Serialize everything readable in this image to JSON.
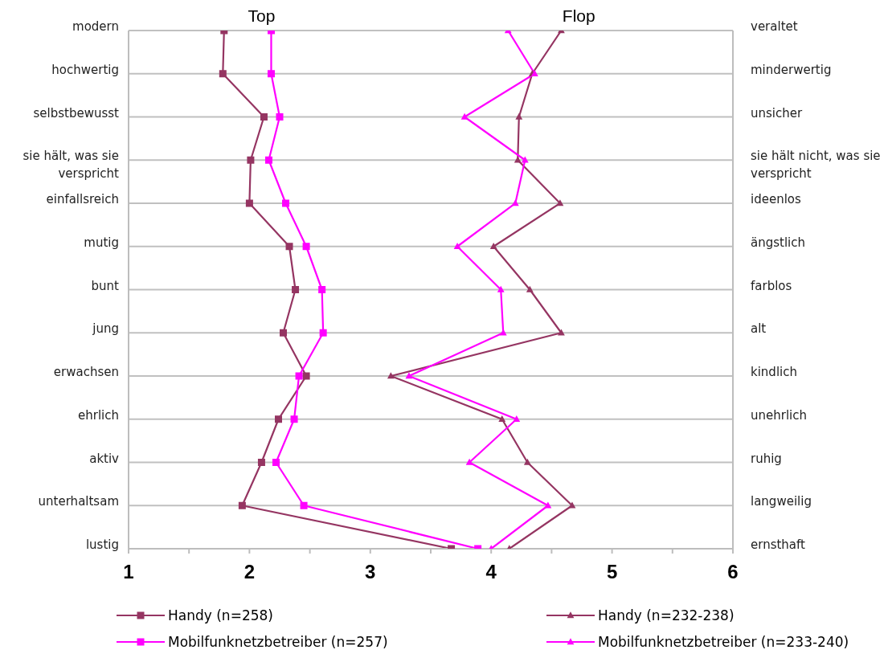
{
  "chart_data": {
    "type": "line",
    "annotations": [
      "Top",
      "Flop"
    ],
    "categories": [
      "modern",
      "hochwertig",
      "selbstbewusst",
      "sie hält, was sie verspricht",
      "einfallsreich",
      "mutig",
      "bunt",
      "jung",
      "erwachsen",
      "ehrlich",
      "aktiv",
      "unterhaltsam",
      "lustig"
    ],
    "y2_categories": [
      "veraltet",
      "minderwertig",
      "unsicher",
      "sie hält nicht, was sie verspricht",
      "ideenlos",
      "ängstlich",
      "farblos",
      "alt",
      "kindlich",
      "unehrlich",
      "ruhig",
      "langweilig",
      "ernsthaft"
    ],
    "series": [
      {
        "name": "Handy (n=258)",
        "color": "#953562",
        "marker": "square",
        "values": [
          1.79,
          1.78,
          2.12,
          2.01,
          2.0,
          2.33,
          2.38,
          2.28,
          2.47,
          2.24,
          2.1,
          1.94,
          3.67
        ]
      },
      {
        "name": "Mobilfunknetzbetreiber (n=257)",
        "color": "#ff00ff",
        "marker": "square",
        "values": [
          2.18,
          2.18,
          2.25,
          2.16,
          2.3,
          2.47,
          2.6,
          2.61,
          2.41,
          2.37,
          2.22,
          2.45,
          3.89
        ]
      },
      {
        "name": "Handy (n=232-238)",
        "color": "#953562",
        "marker": "triangle",
        "values": [
          4.58,
          4.34,
          4.23,
          4.22,
          4.57,
          4.02,
          4.32,
          4.58,
          3.17,
          4.09,
          4.3,
          4.67,
          4.15
        ]
      },
      {
        "name": "Mobilfunknetzbetreiber (n=233-240)",
        "color": "#ff00ff",
        "marker": "triangle",
        "values": [
          4.14,
          4.36,
          3.78,
          4.28,
          4.2,
          3.72,
          4.08,
          4.1,
          3.32,
          4.21,
          3.82,
          4.47,
          4.0
        ]
      }
    ],
    "xlim": [
      1,
      6
    ],
    "xticks": [
      1,
      {
        "value": 1.5,
        "label": null
      },
      2,
      {
        "value": 2.5,
        "label": null
      },
      3,
      {
        "value": 3.5,
        "label": null
      },
      4,
      {
        "value": 4.5,
        "label": null
      },
      5,
      {
        "value": 5.5,
        "label": null
      },
      6
    ],
    "orientation": "horizontal",
    "grid": "y",
    "legend": "bottom",
    "line_style": "solid"
  }
}
